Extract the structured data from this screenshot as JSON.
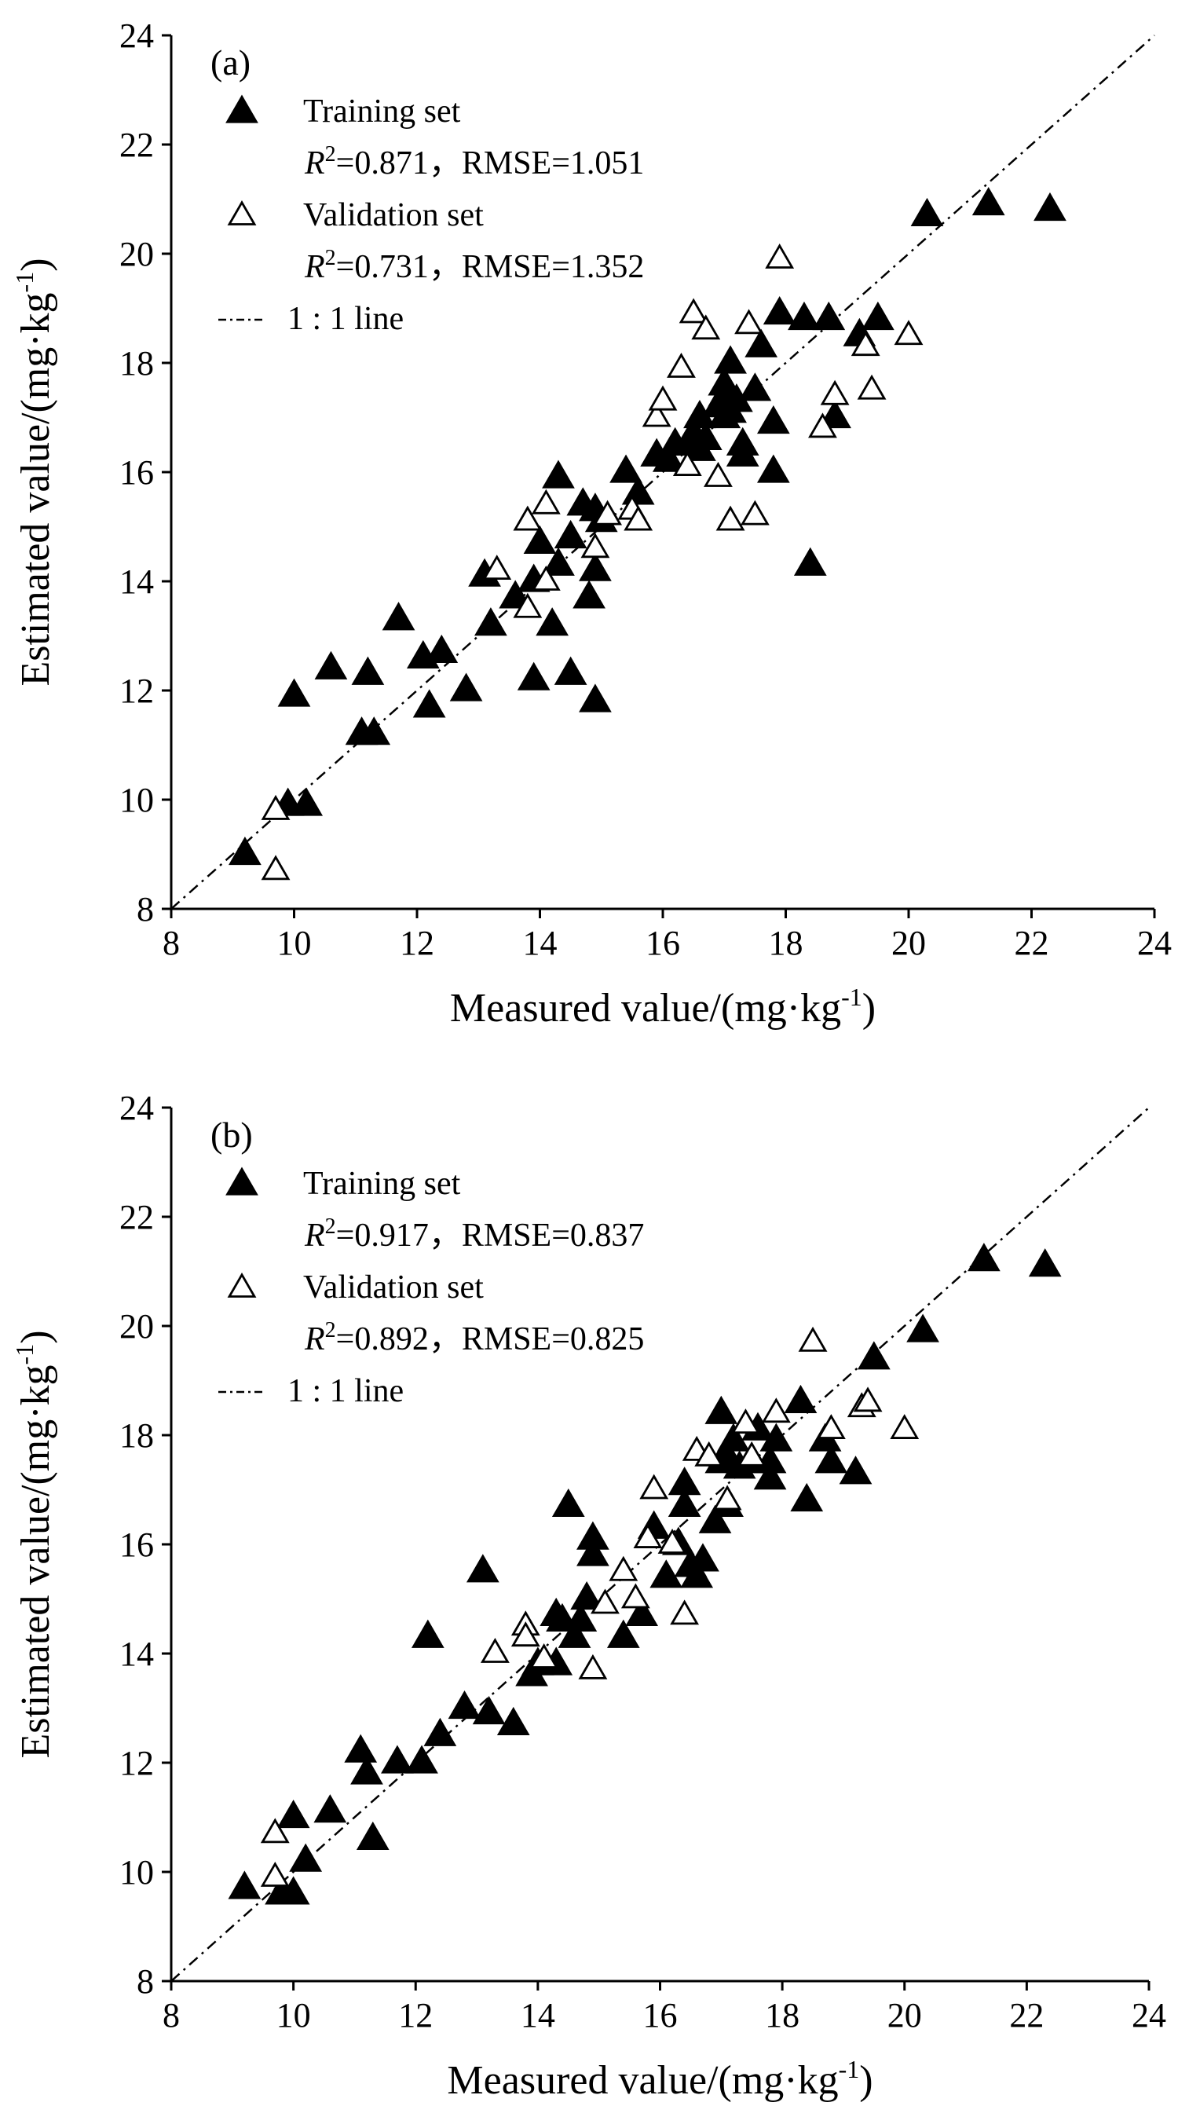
{
  "chart_data": [
    {
      "type": "scatter",
      "panel_label": "(a)",
      "xlabel": "Measured value/(mg·kg",
      "xlabel_sup": "-1",
      "xlabel_end": ")",
      "ylabel": "Estimated value/(mg·kg",
      "ylabel_sup": "-1",
      "ylabel_end": ")",
      "xlim": [
        8,
        24
      ],
      "ylim": [
        8,
        24
      ],
      "xticks": [
        "8",
        "10",
        "12",
        "14",
        "16",
        "18",
        "20",
        "22",
        "24"
      ],
      "yticks": [
        "8",
        "10",
        "12",
        "14",
        "16",
        "18",
        "20",
        "22",
        "24"
      ],
      "legend": {
        "position": "top-left",
        "training_label": "Training set",
        "training_stats": "=0.871，RMSE=1.051",
        "validation_label": "Validation set",
        "validation_stats": "=0.731，RMSE=1.352",
        "r2_symbol": "R",
        "r2_sup": "2",
        "line_label": "1 : 1 line"
      },
      "series": [
        {
          "name": "Training set",
          "marker": "filled-triangle",
          "points": [
            [
              9.2,
              9.0
            ],
            [
              9.9,
              9.9
            ],
            [
              10.0,
              11.9
            ],
            [
              10.2,
              9.9
            ],
            [
              10.6,
              12.4
            ],
            [
              11.1,
              11.2
            ],
            [
              11.2,
              12.3
            ],
            [
              11.3,
              11.2
            ],
            [
              11.7,
              13.3
            ],
            [
              12.1,
              12.6
            ],
            [
              12.2,
              11.7
            ],
            [
              12.4,
              12.7
            ],
            [
              12.8,
              12.0
            ],
            [
              13.1,
              14.1
            ],
            [
              13.2,
              13.2
            ],
            [
              13.6,
              13.7
            ],
            [
              13.9,
              12.2
            ],
            [
              13.9,
              14.0
            ],
            [
              14.0,
              14.7
            ],
            [
              14.2,
              13.2
            ],
            [
              14.3,
              15.9
            ],
            [
              14.3,
              14.3
            ],
            [
              14.5,
              12.3
            ],
            [
              14.5,
              14.8
            ],
            [
              14.7,
              15.4
            ],
            [
              14.8,
              13.7
            ],
            [
              14.9,
              14.2
            ],
            [
              14.9,
              15.3
            ],
            [
              14.9,
              11.8
            ],
            [
              15.0,
              15.1
            ],
            [
              15.4,
              16.0
            ],
            [
              15.6,
              15.6
            ],
            [
              15.9,
              16.3
            ],
            [
              16.1,
              16.2
            ],
            [
              16.2,
              16.5
            ],
            [
              16.4,
              16.5
            ],
            [
              16.5,
              16.7
            ],
            [
              16.6,
              17.0
            ],
            [
              16.6,
              16.4
            ],
            [
              16.7,
              16.6
            ],
            [
              16.9,
              17.2
            ],
            [
              17.0,
              17.4
            ],
            [
              17.0,
              17.6
            ],
            [
              17.0,
              17.0
            ],
            [
              17.1,
              18.0
            ],
            [
              17.1,
              17.1
            ],
            [
              17.2,
              17.3
            ],
            [
              17.3,
              16.3
            ],
            [
              17.3,
              16.5
            ],
            [
              17.5,
              17.5
            ],
            [
              17.6,
              18.3
            ],
            [
              17.8,
              16.0
            ],
            [
              17.8,
              16.9
            ],
            [
              17.9,
              18.9
            ],
            [
              18.3,
              18.8
            ],
            [
              18.4,
              14.3
            ],
            [
              18.7,
              18.8
            ],
            [
              18.8,
              17.0
            ],
            [
              19.2,
              18.5
            ],
            [
              19.5,
              18.8
            ],
            [
              20.3,
              20.7
            ],
            [
              21.3,
              20.9
            ],
            [
              22.3,
              20.8
            ]
          ]
        },
        {
          "name": "Validation set",
          "marker": "open-triangle",
          "points": [
            [
              9.7,
              8.7
            ],
            [
              9.7,
              9.8
            ],
            [
              13.3,
              14.2
            ],
            [
              13.8,
              15.1
            ],
            [
              13.8,
              13.5
            ],
            [
              14.1,
              14.0
            ],
            [
              14.1,
              15.4
            ],
            [
              14.9,
              14.6
            ],
            [
              15.1,
              15.2
            ],
            [
              15.5,
              15.3
            ],
            [
              15.6,
              15.1
            ],
            [
              15.9,
              17.0
            ],
            [
              16.0,
              17.3
            ],
            [
              16.3,
              17.9
            ],
            [
              16.4,
              16.1
            ],
            [
              16.5,
              18.9
            ],
            [
              16.7,
              18.6
            ],
            [
              16.9,
              15.9
            ],
            [
              17.1,
              15.1
            ],
            [
              17.4,
              18.7
            ],
            [
              17.5,
              15.2
            ],
            [
              17.9,
              19.9
            ],
            [
              18.6,
              16.8
            ],
            [
              18.8,
              17.4
            ],
            [
              19.3,
              18.3
            ],
            [
              19.4,
              17.5
            ],
            [
              20.0,
              18.5
            ]
          ]
        }
      ]
    },
    {
      "type": "scatter",
      "panel_label": "(b)",
      "xlabel": "Measured value/(mg·kg",
      "xlabel_sup": "-1",
      "xlabel_end": ")",
      "ylabel": "Estimated value/(mg·kg",
      "ylabel_sup": "-1",
      "ylabel_end": ")",
      "xlim": [
        8,
        24
      ],
      "ylim": [
        8,
        24
      ],
      "xticks": [
        "8",
        "10",
        "12",
        "14",
        "16",
        "18",
        "20",
        "22",
        "24"
      ],
      "yticks": [
        "8",
        "10",
        "12",
        "14",
        "16",
        "18",
        "20",
        "22",
        "24"
      ],
      "legend": {
        "position": "top-left",
        "training_label": "Training set",
        "training_stats": "=0.917，RMSE=0.837",
        "validation_label": "Validation set",
        "validation_stats": "=0.892，RMSE=0.825",
        "r2_symbol": "R",
        "r2_sup": "2",
        "line_label": "1 : 1 line"
      },
      "series": [
        {
          "name": "Training set",
          "marker": "filled-triangle",
          "points": [
            [
              9.2,
              9.7
            ],
            [
              9.8,
              9.6
            ],
            [
              10.0,
              9.6
            ],
            [
              10.0,
              11.0
            ],
            [
              10.2,
              10.2
            ],
            [
              10.6,
              11.1
            ],
            [
              11.1,
              12.2
            ],
            [
              11.2,
              11.8
            ],
            [
              11.3,
              10.6
            ],
            [
              11.7,
              12.0
            ],
            [
              12.1,
              12.0
            ],
            [
              12.2,
              14.3
            ],
            [
              12.4,
              12.5
            ],
            [
              12.8,
              13.0
            ],
            [
              13.1,
              15.5
            ],
            [
              13.2,
              12.9
            ],
            [
              13.6,
              12.7
            ],
            [
              13.9,
              13.6
            ],
            [
              14.0,
              13.8
            ],
            [
              14.3,
              13.8
            ],
            [
              14.3,
              14.7
            ],
            [
              14.4,
              14.6
            ],
            [
              14.5,
              16.7
            ],
            [
              14.6,
              14.3
            ],
            [
              14.7,
              14.6
            ],
            [
              14.8,
              15.0
            ],
            [
              14.9,
              15.8
            ],
            [
              14.9,
              16.1
            ],
            [
              15.4,
              14.3
            ],
            [
              15.7,
              14.7
            ],
            [
              15.9,
              16.3
            ],
            [
              16.1,
              15.4
            ],
            [
              16.3,
              16.0
            ],
            [
              16.4,
              16.7
            ],
            [
              16.4,
              17.1
            ],
            [
              16.5,
              15.6
            ],
            [
              16.6,
              15.4
            ],
            [
              16.7,
              15.7
            ],
            [
              16.9,
              16.4
            ],
            [
              17.0,
              18.4
            ],
            [
              17.0,
              17.5
            ],
            [
              17.1,
              17.6
            ],
            [
              17.1,
              16.7
            ],
            [
              17.2,
              17.9
            ],
            [
              17.3,
              17.4
            ],
            [
              17.5,
              17.5
            ],
            [
              17.6,
              18.1
            ],
            [
              17.8,
              17.5
            ],
            [
              17.8,
              17.2
            ],
            [
              17.9,
              17.9
            ],
            [
              18.3,
              18.6
            ],
            [
              18.4,
              16.8
            ],
            [
              18.7,
              17.9
            ],
            [
              18.8,
              17.5
            ],
            [
              19.2,
              17.3
            ],
            [
              19.5,
              19.4
            ],
            [
              20.3,
              19.9
            ],
            [
              21.3,
              21.2
            ],
            [
              22.3,
              21.1
            ]
          ]
        },
        {
          "name": "Validation set",
          "marker": "open-triangle",
          "points": [
            [
              9.7,
              10.7
            ],
            [
              9.7,
              9.9
            ],
            [
              13.3,
              14.0
            ],
            [
              13.8,
              14.5
            ],
            [
              13.8,
              14.3
            ],
            [
              14.1,
              13.9
            ],
            [
              14.9,
              13.7
            ],
            [
              15.1,
              14.9
            ],
            [
              15.4,
              15.5
            ],
            [
              15.6,
              15.0
            ],
            [
              15.8,
              16.1
            ],
            [
              15.9,
              17.0
            ],
            [
              16.2,
              16.0
            ],
            [
              16.4,
              14.7
            ],
            [
              16.6,
              17.7
            ],
            [
              16.8,
              17.6
            ],
            [
              17.1,
              16.8
            ],
            [
              17.4,
              18.2
            ],
            [
              17.5,
              17.6
            ],
            [
              17.9,
              18.4
            ],
            [
              18.5,
              19.7
            ],
            [
              18.8,
              18.1
            ],
            [
              19.3,
              18.5
            ],
            [
              19.4,
              18.6
            ],
            [
              20.0,
              18.1
            ]
          ]
        }
      ]
    }
  ]
}
